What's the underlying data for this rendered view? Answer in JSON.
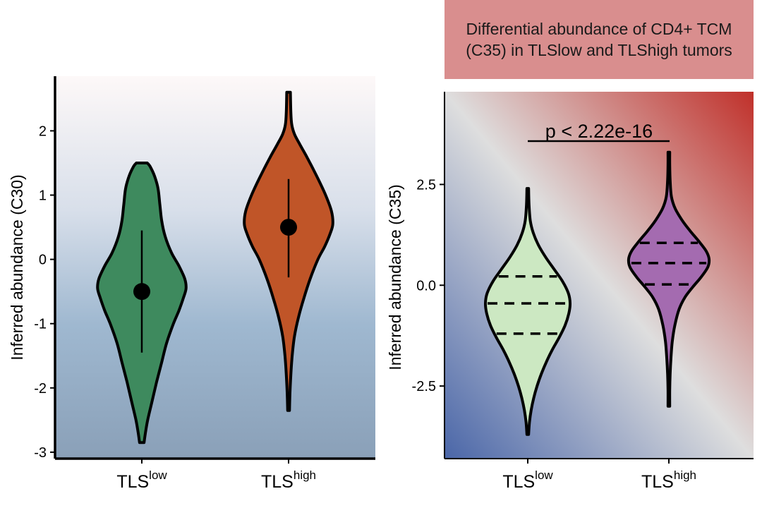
{
  "chart_data": [
    {
      "type": "violin",
      "panel": "left",
      "title": "",
      "xlabel": "",
      "ylabel": "Inferred abundance (C30)",
      "ylim": [
        -3.1,
        2.85
      ],
      "yticks": [
        -3,
        -2,
        -1,
        0,
        1,
        2
      ],
      "ytick_labels": [
        "-3",
        "-2",
        "-1",
        "0",
        "1",
        "2"
      ],
      "categories": [
        {
          "base": "TLS",
          "sup": "low"
        },
        {
          "base": "TLS",
          "sup": "high"
        }
      ],
      "colors": [
        "#3e8a5e",
        "#c05528"
      ],
      "background": {
        "top": "#fdf8f8",
        "bottom": "#8aa0b8"
      },
      "series": [
        {
          "name": "TLSlow",
          "min": -2.85,
          "max": 1.5,
          "median": -0.5,
          "ci": [
            -1.45,
            0.45
          ],
          "density": [
            [
              -2.85,
              0.05
            ],
            [
              -2.7,
              0.08
            ],
            [
              -2.5,
              0.13
            ],
            [
              -2.2,
              0.23
            ],
            [
              -1.9,
              0.33
            ],
            [
              -1.6,
              0.44
            ],
            [
              -1.3,
              0.55
            ],
            [
              -1.0,
              0.7
            ],
            [
              -0.8,
              0.82
            ],
            [
              -0.6,
              0.92
            ],
            [
              -0.45,
              0.98
            ],
            [
              -0.3,
              0.95
            ],
            [
              -0.1,
              0.82
            ],
            [
              0.1,
              0.66
            ],
            [
              0.35,
              0.52
            ],
            [
              0.6,
              0.44
            ],
            [
              0.85,
              0.4
            ],
            [
              1.1,
              0.36
            ],
            [
              1.3,
              0.28
            ],
            [
              1.45,
              0.18
            ],
            [
              1.5,
              0.12
            ]
          ]
        },
        {
          "name": "TLShigh",
          "min": -2.35,
          "max": 2.6,
          "median": 0.5,
          "ci": [
            -0.28,
            1.25
          ],
          "density": [
            [
              -2.35,
              0.02
            ],
            [
              -2.1,
              0.03
            ],
            [
              -1.8,
              0.05
            ],
            [
              -1.5,
              0.08
            ],
            [
              -1.2,
              0.13
            ],
            [
              -0.9,
              0.22
            ],
            [
              -0.6,
              0.34
            ],
            [
              -0.3,
              0.48
            ],
            [
              0.0,
              0.65
            ],
            [
              0.2,
              0.8
            ],
            [
              0.4,
              0.92
            ],
            [
              0.55,
              0.98
            ],
            [
              0.75,
              0.95
            ],
            [
              1.0,
              0.82
            ],
            [
              1.3,
              0.62
            ],
            [
              1.6,
              0.4
            ],
            [
              1.8,
              0.24
            ],
            [
              1.95,
              0.13
            ],
            [
              2.1,
              0.07
            ],
            [
              2.3,
              0.05
            ],
            [
              2.6,
              0.04
            ]
          ]
        }
      ]
    },
    {
      "type": "violin",
      "panel": "right",
      "title": "Differential abundance of CD4+ TCM (C35) in TLSlow and TLShigh tumors",
      "xlabel": "",
      "ylabel": "Inferred abundance (C35)",
      "ylim": [
        -4.3,
        4.8
      ],
      "yticks": [
        -2.5,
        0.0,
        2.5
      ],
      "ytick_labels": [
        "-2.5",
        "0.0",
        "2.5"
      ],
      "categories": [
        {
          "base": "TLS",
          "sup": "low"
        },
        {
          "base": "TLS",
          "sup": "high"
        }
      ],
      "colors": [
        "#cce8c2",
        "#a46bb0"
      ],
      "background": {
        "low": "#4a66a8",
        "mid": "#dedede",
        "high": "#c0302a"
      },
      "annotation": "p < 2.22e-16",
      "series": [
        {
          "name": "TLSlow",
          "min": -3.7,
          "max": 2.4,
          "quartiles": [
            -1.2,
            -0.45,
            0.22
          ],
          "density": [
            [
              -3.7,
              0.02
            ],
            [
              -3.4,
              0.04
            ],
            [
              -3.1,
              0.08
            ],
            [
              -2.8,
              0.14
            ],
            [
              -2.5,
              0.22
            ],
            [
              -2.2,
              0.32
            ],
            [
              -1.9,
              0.44
            ],
            [
              -1.6,
              0.58
            ],
            [
              -1.3,
              0.74
            ],
            [
              -1.0,
              0.88
            ],
            [
              -0.7,
              0.97
            ],
            [
              -0.45,
              1.0
            ],
            [
              -0.2,
              0.96
            ],
            [
              0.1,
              0.82
            ],
            [
              0.4,
              0.62
            ],
            [
              0.7,
              0.42
            ],
            [
              1.0,
              0.25
            ],
            [
              1.3,
              0.13
            ],
            [
              1.6,
              0.06
            ],
            [
              2.0,
              0.03
            ],
            [
              2.4,
              0.02
            ]
          ]
        },
        {
          "name": "TLShigh",
          "min": -3.0,
          "max": 3.3,
          "quartiles": [
            0.02,
            0.55,
            1.05
          ],
          "density": [
            [
              -3.0,
              0.02
            ],
            [
              -2.6,
              0.02
            ],
            [
              -2.2,
              0.03
            ],
            [
              -1.8,
              0.05
            ],
            [
              -1.4,
              0.08
            ],
            [
              -1.0,
              0.14
            ],
            [
              -0.6,
              0.24
            ],
            [
              -0.3,
              0.38
            ],
            [
              -0.05,
              0.56
            ],
            [
              0.2,
              0.76
            ],
            [
              0.45,
              0.92
            ],
            [
              0.65,
              0.95
            ],
            [
              0.85,
              0.88
            ],
            [
              1.1,
              0.7
            ],
            [
              1.35,
              0.5
            ],
            [
              1.6,
              0.32
            ],
            [
              1.9,
              0.15
            ],
            [
              2.2,
              0.06
            ],
            [
              2.6,
              0.03
            ],
            [
              3.0,
              0.02
            ],
            [
              3.3,
              0.02
            ]
          ]
        }
      ]
    }
  ]
}
